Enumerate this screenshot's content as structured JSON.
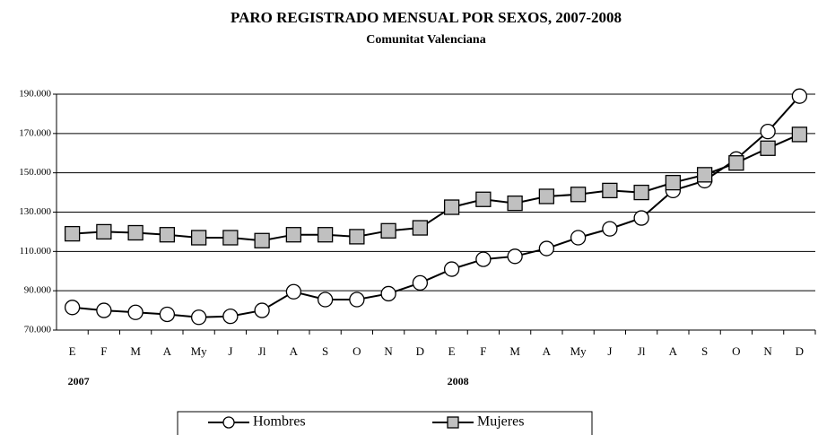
{
  "chart_data": {
    "type": "line",
    "title": "PARO REGISTRADO MENSUAL POR SEXOS, 2007-2008",
    "subtitle": "Comunitat Valenciana",
    "categories": [
      "E",
      "F",
      "M",
      "A",
      "My",
      "J",
      "Jl",
      "A",
      "S",
      "O",
      "N",
      "D",
      "E",
      "F",
      "M",
      "A",
      "My",
      "J",
      "Jl",
      "A",
      "S",
      "O",
      "N",
      "D"
    ],
    "year_labels": [
      "2007",
      "2008"
    ],
    "series": [
      {
        "name": "Hombres",
        "color": "#000000",
        "marker": "circle",
        "marker_fill": "#ffffff",
        "values": [
          81500,
          80000,
          79000,
          78000,
          76500,
          77000,
          80000,
          89500,
          85500,
          85500,
          88500,
          94000,
          101000,
          106000,
          107500,
          111500,
          117000,
          121500,
          127000,
          141000,
          146000,
          157000,
          171000,
          189000
        ]
      },
      {
        "name": "Mujeres",
        "color": "#000000",
        "marker": "square",
        "marker_fill": "#c0c0c0",
        "values": [
          119000,
          120000,
          119500,
          118500,
          117000,
          117000,
          115500,
          118500,
          118500,
          117500,
          120500,
          122000,
          132500,
          136500,
          134500,
          138000,
          139000,
          141000,
          140000,
          145000,
          149000,
          155000,
          162500,
          169500
        ]
      }
    ],
    "ylim": [
      70000,
      190000
    ],
    "yticks": [
      {
        "value": 70000,
        "label": "70.000"
      },
      {
        "value": 90000,
        "label": "90.000"
      },
      {
        "value": 110000,
        "label": "110.000"
      },
      {
        "value": 130000,
        "label": "130.000"
      },
      {
        "value": 150000,
        "label": "150.000"
      },
      {
        "value": 170000,
        "label": "170.000"
      },
      {
        "value": 190000,
        "label": "190.000"
      }
    ],
    "grid": true
  }
}
